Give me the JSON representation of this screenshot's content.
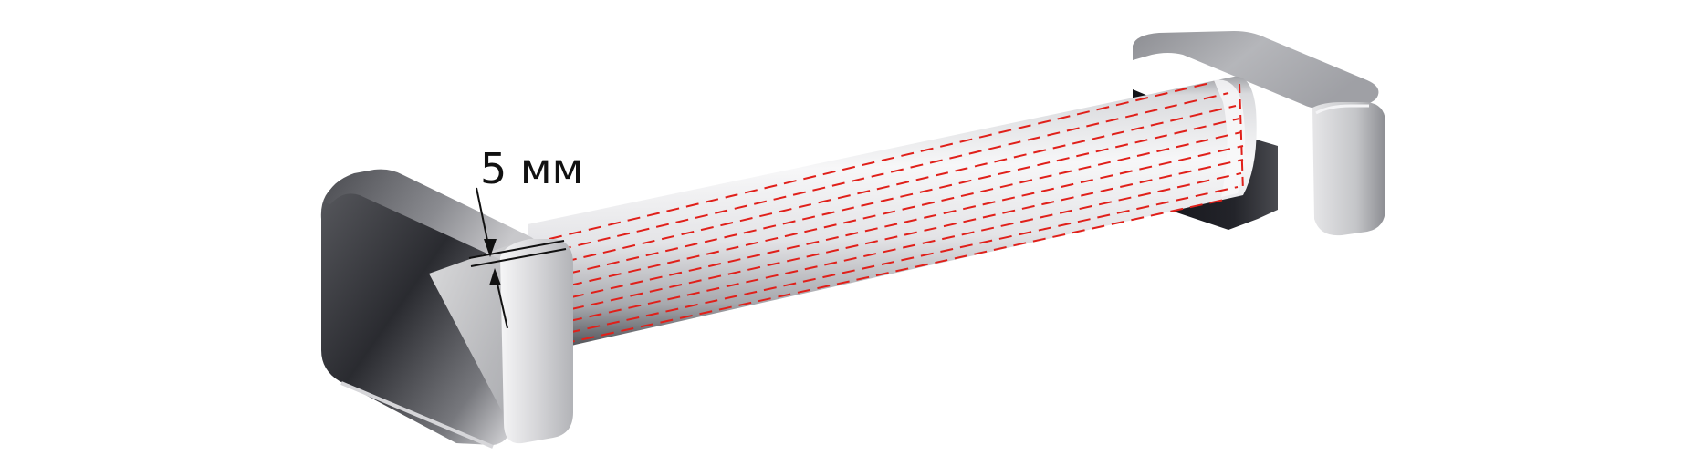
{
  "figure": {
    "dimension_label": "5 мм",
    "colors": {
      "background": "#ffffff",
      "metal_light": "#f2f2f4",
      "metal_mid": "#9a9ba0",
      "metal_dark": "#1c1d22",
      "hatch_lines": "#e0201a",
      "dimension_ink": "#111111"
    }
  }
}
